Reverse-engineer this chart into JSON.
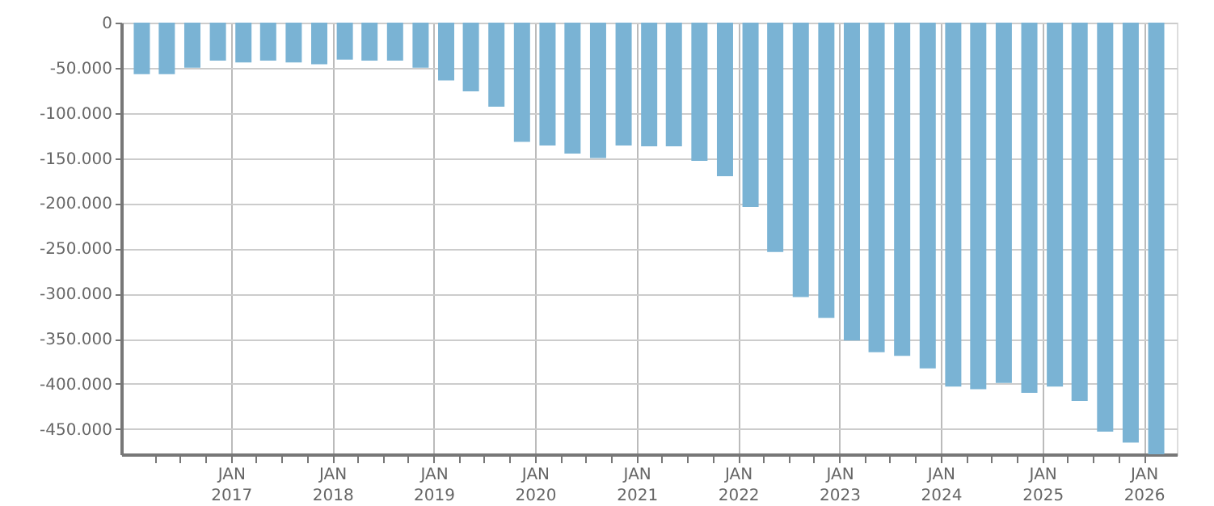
{
  "chart_data": {
    "type": "bar",
    "color": "#7ab3d4",
    "x": [
      "2016-02-15",
      "2016-05-15",
      "2016-08-15",
      "2016-11-15",
      "2017-02-15",
      "2017-05-15",
      "2017-08-15",
      "2017-11-15",
      "2018-02-15",
      "2018-05-15",
      "2018-08-15",
      "2018-11-15",
      "2019-02-15",
      "2019-05-15",
      "2019-08-15",
      "2019-11-15",
      "2020-02-15",
      "2020-05-15",
      "2020-08-15",
      "2020-11-15",
      "2021-02-15",
      "2021-05-15",
      "2021-08-15",
      "2021-11-15",
      "2022-02-15",
      "2022-05-15",
      "2022-08-15",
      "2022-11-15",
      "2023-02-15",
      "2023-05-15",
      "2023-08-15",
      "2023-11-15",
      "2024-02-15",
      "2024-05-15",
      "2024-08-15",
      "2024-11-15",
      "2025-02-15",
      "2025-05-15",
      "2025-08-15",
      "2025-11-15",
      "2026-02-15"
    ],
    "values": [
      -57000,
      -57000,
      -50000,
      -42000,
      -44000,
      -42000,
      -44000,
      -46000,
      -41000,
      -42000,
      -42000,
      -50000,
      -64000,
      -76000,
      -93000,
      -132000,
      -136000,
      -145000,
      -150000,
      -136000,
      -137000,
      -137000,
      -153000,
      -170000,
      -204000,
      -254000,
      -304000,
      -327000,
      -352000,
      -365000,
      -369000,
      -383000,
      -403000,
      -406000,
      -399000,
      -410000,
      -403000,
      -419000,
      -453000,
      -465000,
      -478000
    ],
    "xlim": [
      "2016-01",
      "2026-04"
    ],
    "xticks": [
      {
        "value": "2016-04",
        "label": null
      },
      {
        "value": "2016-07",
        "label": null
      },
      {
        "value": "2016-10",
        "label": null
      },
      {
        "value": "2017-01",
        "label": "JAN\n2017"
      },
      {
        "value": "2017-04",
        "label": null
      },
      {
        "value": "2017-07",
        "label": null
      },
      {
        "value": "2017-10",
        "label": null
      },
      {
        "value": "2018-01",
        "label": "JAN\n2018"
      },
      {
        "value": "2018-04",
        "label": null
      },
      {
        "value": "2018-07",
        "label": null
      },
      {
        "value": "2018-10",
        "label": null
      },
      {
        "value": "2019-01",
        "label": "JAN\n2019"
      },
      {
        "value": "2019-04",
        "label": null
      },
      {
        "value": "2019-07",
        "label": null
      },
      {
        "value": "2019-10",
        "label": null
      },
      {
        "value": "2020-01",
        "label": "JAN\n2020"
      },
      {
        "value": "2020-04",
        "label": null
      },
      {
        "value": "2020-07",
        "label": null
      },
      {
        "value": "2020-10",
        "label": null
      },
      {
        "value": "2021-01",
        "label": "JAN\n2021"
      },
      {
        "value": "2021-04",
        "label": null
      },
      {
        "value": "2021-07",
        "label": null
      },
      {
        "value": "2021-10",
        "label": null
      },
      {
        "value": "2022-01",
        "label": "JAN\n2022"
      },
      {
        "value": "2022-04",
        "label": null
      },
      {
        "value": "2022-07",
        "label": null
      },
      {
        "value": "2022-10",
        "label": null
      },
      {
        "value": "2023-01",
        "label": "JAN\n2023"
      },
      {
        "value": "2023-04",
        "label": null
      },
      {
        "value": "2023-07",
        "label": null
      },
      {
        "value": "2023-10",
        "label": null
      },
      {
        "value": "2024-01",
        "label": "JAN\n2024"
      },
      {
        "value": "2024-04",
        "label": null
      },
      {
        "value": "2024-07",
        "label": null
      },
      {
        "value": "2024-10",
        "label": null
      },
      {
        "value": "2025-01",
        "label": "JAN\n2025"
      },
      {
        "value": "2025-04",
        "label": null
      },
      {
        "value": "2025-07",
        "label": null
      },
      {
        "value": "2025-10",
        "label": null
      },
      {
        "value": "2026-01",
        "label": "JAN\n2026"
      }
    ],
    "ylim": [
      -478000,
      0
    ],
    "yticks": [
      {
        "value": -450000,
        "label": "-450.000"
      },
      {
        "value": -400000,
        "label": "-400.000"
      },
      {
        "value": -350000,
        "label": "-350.000"
      },
      {
        "value": -300000,
        "label": "-300.000"
      },
      {
        "value": -250000,
        "label": "-250.000"
      },
      {
        "value": -200000,
        "label": "-200.000"
      },
      {
        "value": -150000,
        "label": "-150.000"
      },
      {
        "value": -100000,
        "label": "-100.000"
      },
      {
        "value": -50000,
        "label": "-50.000"
      },
      0
    ],
    "grid": true
  }
}
